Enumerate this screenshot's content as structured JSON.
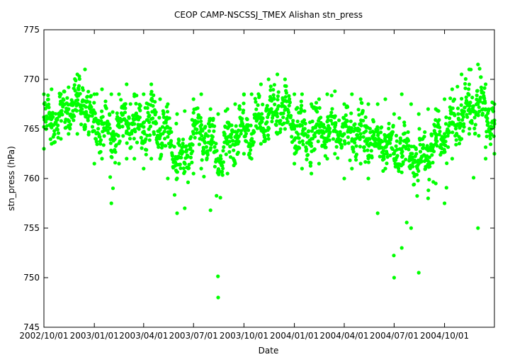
{
  "chart_data": {
    "type": "scatter",
    "title": "CEOP CAMP-NSCSSJ_TMEX Alishan  stn_press",
    "xlabel": "Date",
    "ylabel": "stn_press (hPa)",
    "xlim": [
      "2002-10-01",
      "2004-12-31"
    ],
    "ylim": [
      745,
      775
    ],
    "x_ticks": [
      "2002/10/01",
      "2003/01/01",
      "2003/04/01",
      "2003/07/01",
      "2003/10/01",
      "2004/01/01",
      "2004/04/01",
      "2004/07/01",
      "2004/10/01"
    ],
    "y_ticks": [
      745,
      750,
      755,
      760,
      765,
      770,
      775
    ],
    "grid": false,
    "legend": "none",
    "marker_color": "#00ff00",
    "series": [
      {
        "x": [
          "2002-10-01",
          "2002-10-15",
          "2002-11-01",
          "2002-11-15",
          "2002-12-01",
          "2002-12-15",
          "2003-01-01",
          "2003-01-15",
          "2003-02-01",
          "2003-02-15",
          "2003-03-01",
          "2003-03-15",
          "2003-04-01",
          "2003-04-15",
          "2003-05-01",
          "2003-05-15",
          "2003-06-01",
          "2003-06-15",
          "2003-07-01",
          "2003-07-15",
          "2003-08-01",
          "2003-08-15",
          "2003-09-01",
          "2003-09-15",
          "2003-10-01",
          "2003-10-15",
          "2003-11-01",
          "2003-11-15",
          "2003-12-01",
          "2003-12-15",
          "2004-01-01",
          "2004-01-15",
          "2004-02-01",
          "2004-02-15",
          "2004-03-01",
          "2004-03-15",
          "2004-04-01",
          "2004-04-15",
          "2004-05-01",
          "2004-05-15",
          "2004-06-01",
          "2004-06-15",
          "2004-07-01",
          "2004-07-15",
          "2004-08-01",
          "2004-08-15",
          "2004-09-01",
          "2004-09-15",
          "2004-10-01",
          "2004-10-15",
          "2004-11-01",
          "2004-11-15",
          "2004-12-01",
          "2004-12-15",
          "2004-12-31"
        ],
        "y": [
          765.2,
          766.0,
          766.5,
          767.0,
          767.5,
          767.8,
          764.8,
          765.5,
          764.5,
          765.2,
          765.8,
          765.5,
          765.2,
          766.0,
          765.0,
          764.2,
          762.0,
          761.5,
          764.5,
          765.0,
          763.5,
          762.0,
          763.5,
          764.2,
          765.0,
          764.5,
          766.0,
          766.5,
          767.0,
          767.2,
          765.0,
          764.5,
          764.0,
          764.8,
          765.0,
          765.2,
          764.5,
          764.8,
          764.5,
          764.0,
          763.5,
          764.2,
          762.5,
          763.0,
          762.5,
          761.5,
          763.0,
          763.5,
          764.5,
          765.5,
          766.5,
          767.0,
          767.5,
          767.0,
          765.5
        ],
        "min": [
          763.0,
          763.5,
          764.0,
          764.5,
          764.5,
          765.0,
          761.5,
          762.0,
          757.5,
          761.5,
          762.0,
          762.0,
          761.0,
          762.0,
          762.0,
          760.0,
          756.5,
          757.0,
          760.5,
          761.0,
          756.8,
          748.0,
          760.5,
          761.5,
          762.5,
          762.0,
          763.5,
          764.0,
          764.5,
          765.0,
          761.5,
          761.0,
          760.5,
          761.5,
          762.0,
          762.5,
          760.0,
          761.0,
          761.5,
          760.0,
          756.5,
          761.0,
          750.0,
          753.0,
          755.0,
          750.5,
          758.0,
          759.5,
          757.5,
          762.0,
          764.0,
          764.5,
          755.0,
          762.0,
          762.5
        ],
        "max": [
          768.5,
          769.0,
          768.5,
          769.2,
          770.5,
          771.0,
          768.5,
          769.0,
          768.5,
          768.5,
          769.5,
          768.5,
          768.5,
          769.5,
          768.0,
          767.5,
          766.5,
          766.8,
          768.0,
          768.5,
          767.0,
          766.5,
          767.0,
          767.5,
          768.5,
          768.5,
          769.5,
          770.0,
          770.5,
          770.0,
          768.5,
          768.5,
          767.5,
          768.0,
          768.5,
          768.8,
          767.5,
          768.5,
          768.0,
          767.5,
          767.5,
          768.0,
          766.5,
          768.5,
          767.5,
          766.5,
          767.0,
          767.0,
          768.0,
          769.0,
          770.5,
          771.0,
          771.5,
          769.5,
          767.5
        ]
      }
    ]
  }
}
